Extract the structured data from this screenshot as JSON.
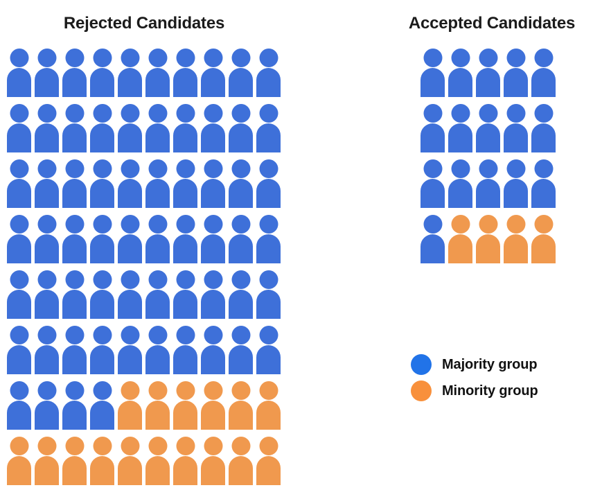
{
  "colors": {
    "icon_majority": "#3E70D9",
    "icon_minority": "#F0994E",
    "legend_majority": "#2173E8",
    "legend_minority": "#F8903C",
    "title_text": "#1B1B1B",
    "legend_text": "#111111"
  },
  "legend": {
    "position": "right-middle",
    "items": [
      {
        "label": "Majority group",
        "group": "majority"
      },
      {
        "label": "Minority group",
        "group": "minority"
      }
    ]
  },
  "chart_data": [
    {
      "type": "waffle-pictograph",
      "title": "Rejected Candidates",
      "columns": 10,
      "rows": 8,
      "total_icons": 80,
      "counts": {
        "majority": 64,
        "minority": 16
      },
      "grid": [
        "BBBBBBBBBB",
        "BBBBBBBBBB",
        "BBBBBBBBBB",
        "BBBBBBBBBB",
        "BBBBBBBBBB",
        "BBBBBBBBBB",
        "BBBBOOOOOO",
        "OOOOOOOOOO"
      ],
      "legend_entries": [
        "Majority group",
        "Minority group"
      ],
      "icon": "person"
    },
    {
      "type": "waffle-pictograph",
      "title": "Accepted Candidates",
      "columns": 5,
      "rows": 4,
      "total_icons": 20,
      "counts": {
        "majority": 16,
        "minority": 4
      },
      "grid": [
        "BBBBB",
        "BBBBB",
        "BBBBB",
        "BOOOO"
      ],
      "legend_entries": [
        "Majority group",
        "Minority group"
      ],
      "icon": "person"
    }
  ]
}
